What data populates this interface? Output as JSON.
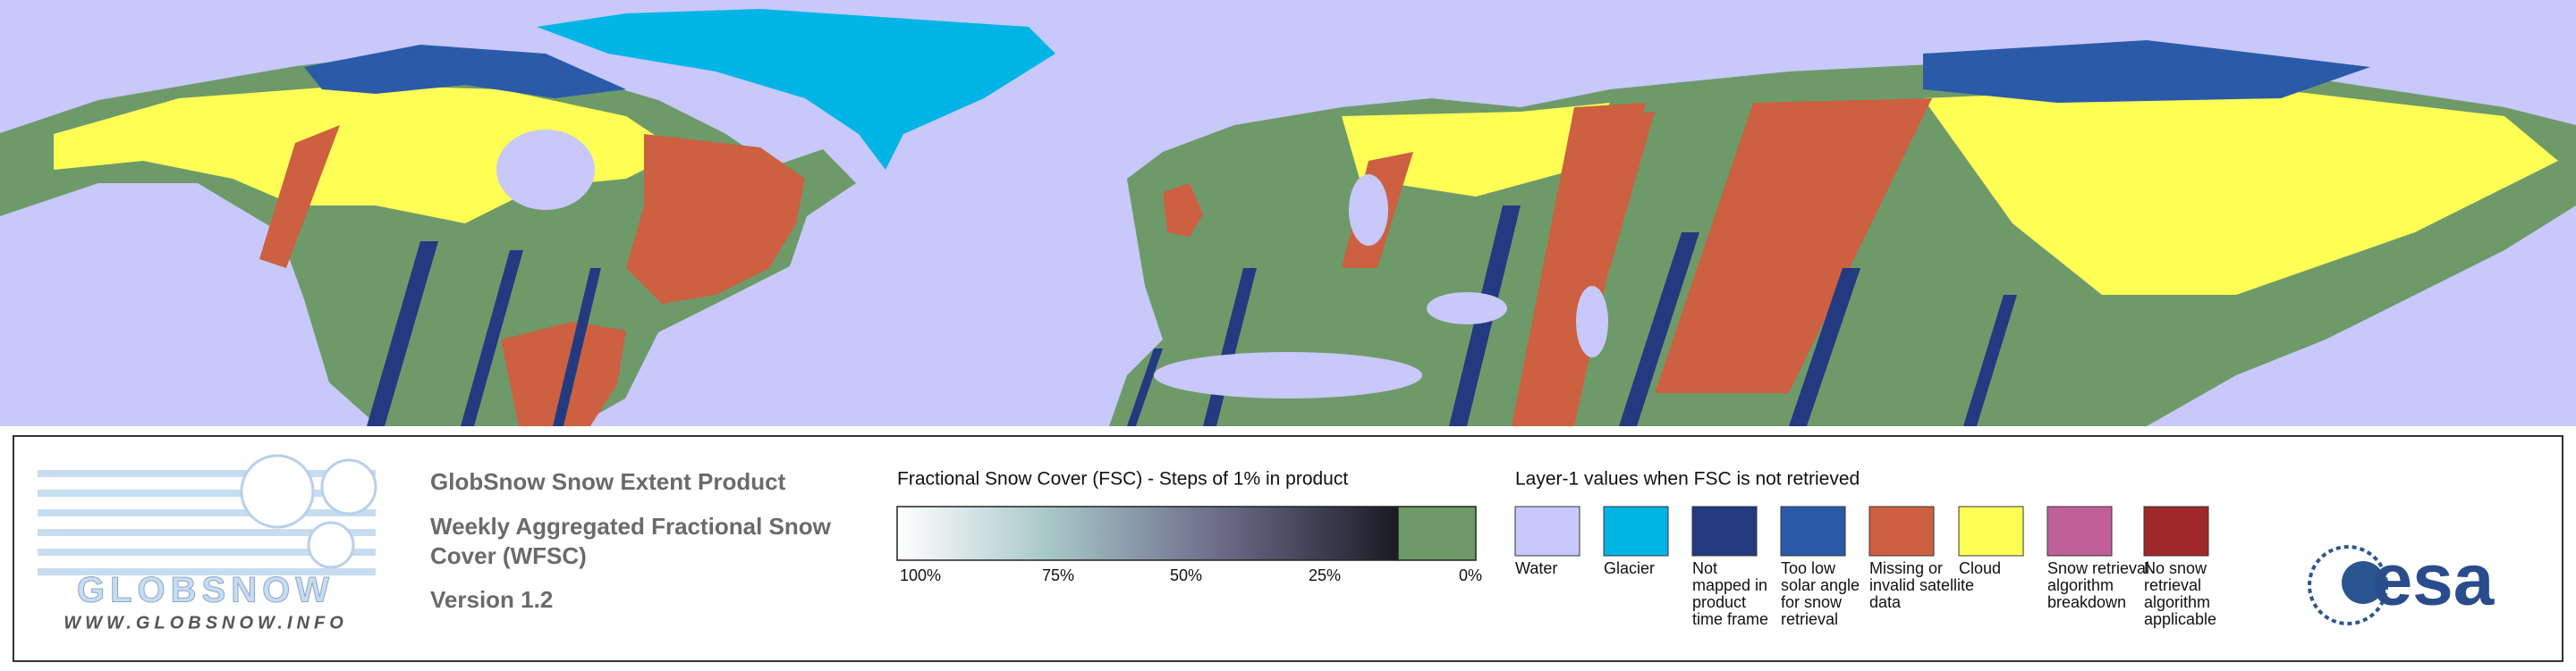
{
  "logo": {
    "name": "GLOBSNOW",
    "url": "WWW.GLOBSNOW.INFO"
  },
  "product": {
    "title": "GlobSnow Snow Extent Product",
    "subtitle_lines": [
      "Weekly Aggregated Fractional Snow",
      "Cover (WFSC)"
    ],
    "version": "Version 1.2"
  },
  "fsc_scale": {
    "title": "Fractional Snow Cover (FSC) - Steps of 1% in product",
    "tick_labels": [
      "100%",
      "75%",
      "50%",
      "25%",
      "0%"
    ]
  },
  "layer1": {
    "title": "Layer-1 values when FSC is not retrieved",
    "items": [
      {
        "color": "#c8c8fa",
        "label_lines": [
          "Water"
        ]
      },
      {
        "color": "#00b4e6",
        "label_lines": [
          "Glacier"
        ]
      },
      {
        "color": "#243a80",
        "label_lines": [
          "Not",
          "mapped in",
          "product",
          "time frame"
        ]
      },
      {
        "color": "#2a5aa8",
        "label_lines": [
          "Too low",
          "solar angle",
          "for snow",
          "retrieval"
        ]
      },
      {
        "color": "#cc6040",
        "label_lines": [
          "Missing or",
          "invalid satellite",
          "data"
        ]
      },
      {
        "color": "#ffff55",
        "label_lines": [
          "Cloud"
        ]
      },
      {
        "color": "#c0609a",
        "label_lines": [
          "Snow retrieval",
          "algorithm",
          "breakdown"
        ]
      },
      {
        "color": "#a02828",
        "label_lines": [
          "No snow",
          "retrieval",
          "algorithm",
          "applicable"
        ]
      }
    ]
  },
  "agency_logo": "esa"
}
